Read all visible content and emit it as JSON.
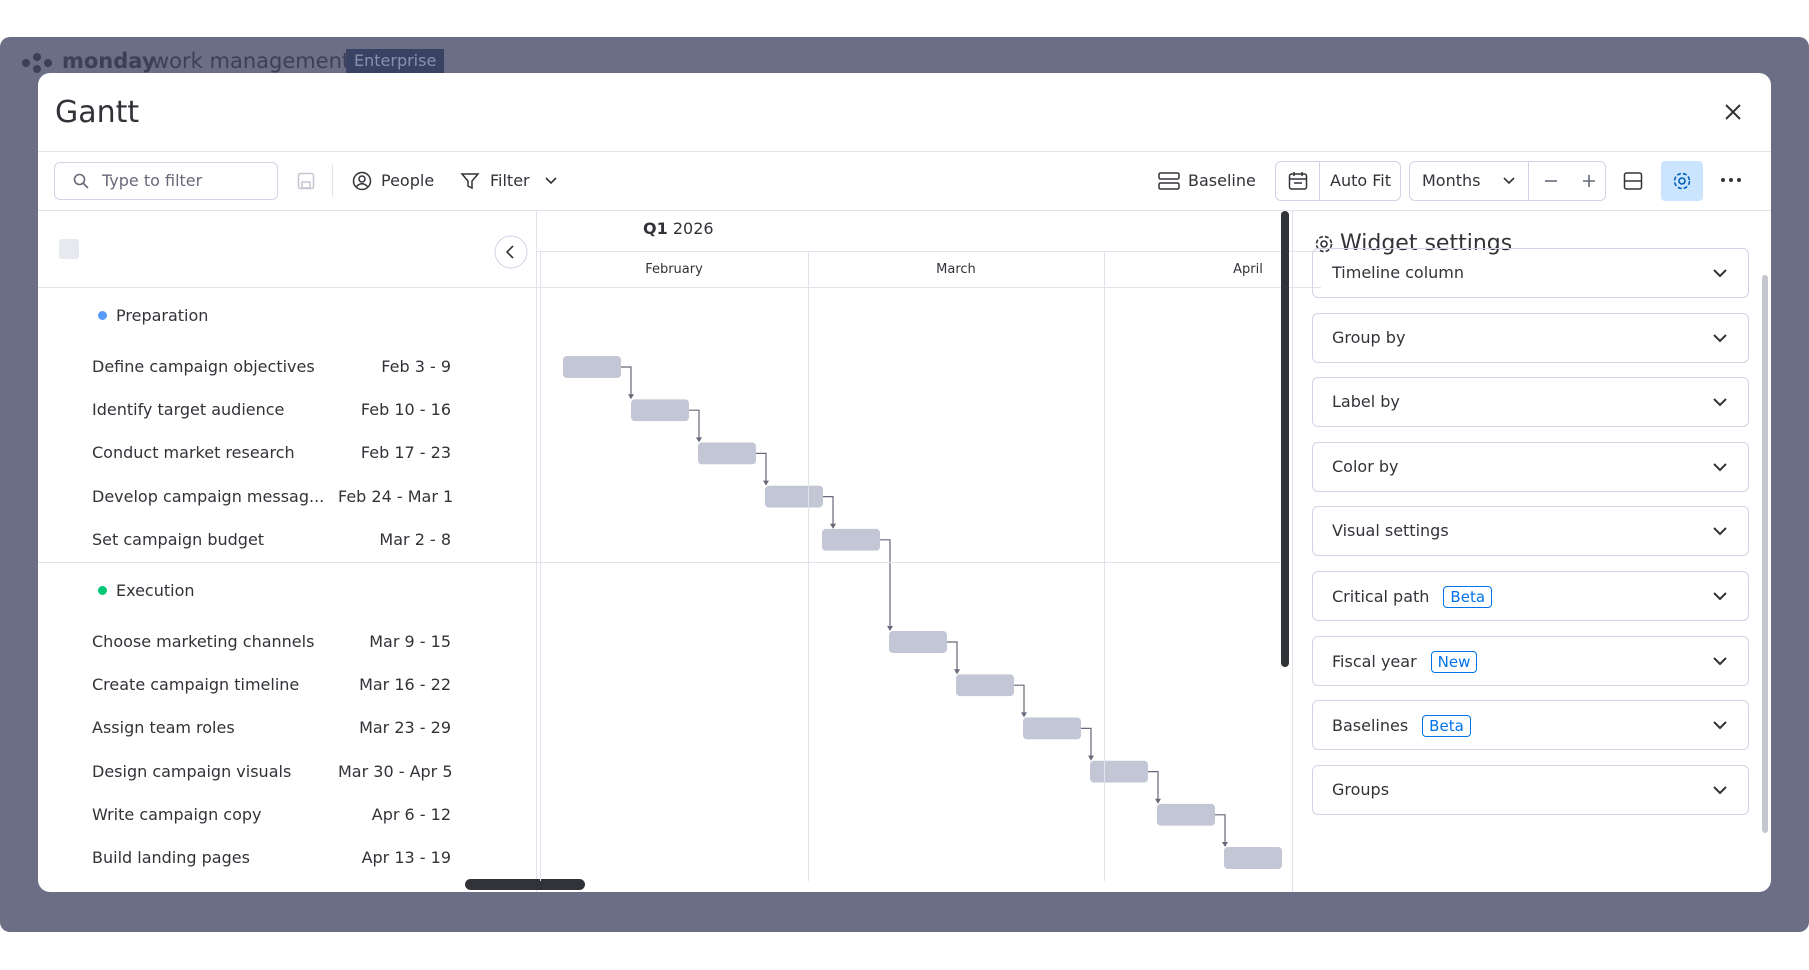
{
  "app_bar": {
    "brand": "monday",
    "product": "work management",
    "plan": "Enterprise"
  },
  "modal": {
    "title": "Gantt"
  },
  "toolbar": {
    "filter_placeholder": "Type to filter",
    "people": "People",
    "filter": "Filter",
    "baseline": "Baseline",
    "auto_fit": "Auto Fit",
    "zoom": "Months"
  },
  "timeline": {
    "quarter": "Q1",
    "year": "2026",
    "months": [
      "February",
      "March",
      "April"
    ]
  },
  "groups": [
    {
      "name": "Preparation",
      "color": "#579bfc",
      "tasks": [
        {
          "name": "Define campaign objectives",
          "dates": "Feb 3 - 9"
        },
        {
          "name": "Identify target audience",
          "dates": "Feb 10 - 16"
        },
        {
          "name": "Conduct market research",
          "dates": "Feb 17 - 23"
        },
        {
          "name": "Develop campaign messag...",
          "dates": "Feb 24 - Mar 1"
        },
        {
          "name": "Set campaign budget",
          "dates": "Mar 2 - 8"
        }
      ]
    },
    {
      "name": "Execution",
      "color": "#00c875",
      "tasks": [
        {
          "name": "Choose marketing channels",
          "dates": "Mar 9 - 15"
        },
        {
          "name": "Create campaign timeline",
          "dates": "Mar 16 - 22"
        },
        {
          "name": "Assign team roles",
          "dates": "Mar 23 - 29"
        },
        {
          "name": "Design campaign visuals",
          "dates": "Mar 30 - Apr 5"
        },
        {
          "name": "Write campaign copy",
          "dates": "Apr 6 - 12"
        },
        {
          "name": "Build landing pages",
          "dates": "Apr 13 - 19"
        }
      ]
    }
  ],
  "settings": {
    "title": "Widget settings",
    "items": [
      {
        "label": "Timeline column"
      },
      {
        "label": "Group by"
      },
      {
        "label": "Label by"
      },
      {
        "label": "Color by"
      },
      {
        "label": "Visual settings"
      },
      {
        "label": "Critical path",
        "badge": "Beta"
      },
      {
        "label": "Fiscal year",
        "badge": "New"
      },
      {
        "label": "Baselines",
        "badge": "Beta"
      },
      {
        "label": "Groups"
      }
    ]
  }
}
